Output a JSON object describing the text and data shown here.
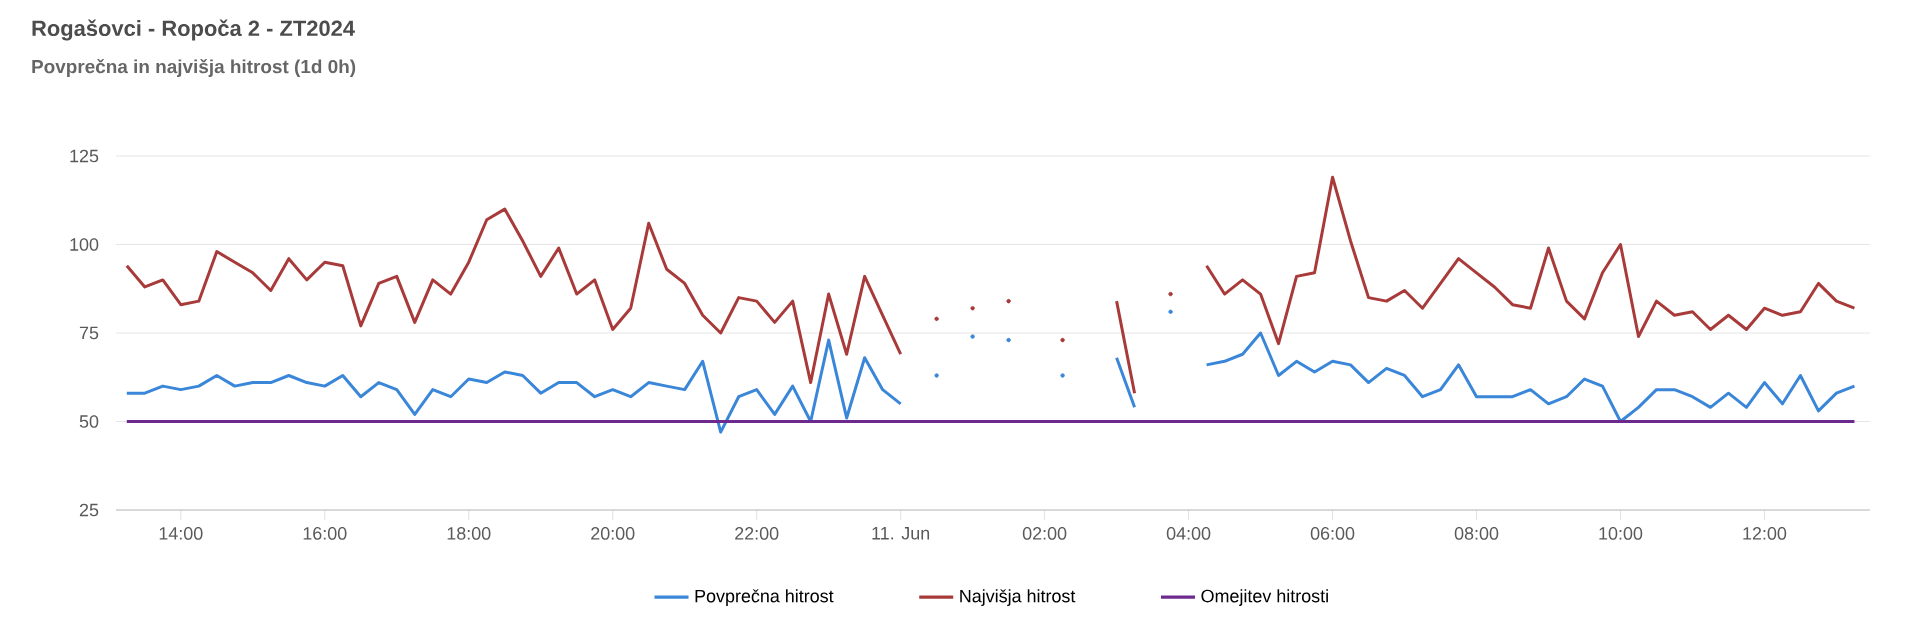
{
  "chart_data": {
    "type": "line",
    "title": "Rogašovci - Ropoča 2 - ZT2024",
    "subtitle": "Povprečna in najvišja hitrost (1d 0h)",
    "x": [
      "2024-06-10T13:15",
      "2024-06-10T13:30",
      "2024-06-10T13:45",
      "2024-06-10T14:00",
      "2024-06-10T14:15",
      "2024-06-10T14:30",
      "2024-06-10T14:45",
      "2024-06-10T15:00",
      "2024-06-10T15:15",
      "2024-06-10T15:30",
      "2024-06-10T15:45",
      "2024-06-10T16:00",
      "2024-06-10T16:15",
      "2024-06-10T16:30",
      "2024-06-10T16:45",
      "2024-06-10T17:00",
      "2024-06-10T17:15",
      "2024-06-10T17:30",
      "2024-06-10T17:45",
      "2024-06-10T18:00",
      "2024-06-10T18:15",
      "2024-06-10T18:30",
      "2024-06-10T18:45",
      "2024-06-10T19:00",
      "2024-06-10T19:15",
      "2024-06-10T19:30",
      "2024-06-10T19:45",
      "2024-06-10T20:00",
      "2024-06-10T20:15",
      "2024-06-10T20:30",
      "2024-06-10T20:45",
      "2024-06-10T21:00",
      "2024-06-10T21:15",
      "2024-06-10T21:30",
      "2024-06-10T21:45",
      "2024-06-10T22:00",
      "2024-06-10T22:15",
      "2024-06-10T22:30",
      "2024-06-10T22:45",
      "2024-06-10T23:00",
      "2024-06-10T23:15",
      "2024-06-10T23:30",
      "2024-06-10T23:45",
      "2024-06-11T00:00",
      "2024-06-11T00:15",
      "2024-06-11T00:30",
      "2024-06-11T00:45",
      "2024-06-11T01:00",
      "2024-06-11T01:15",
      "2024-06-11T01:30",
      "2024-06-11T01:45",
      "2024-06-11T02:00",
      "2024-06-11T02:15",
      "2024-06-11T02:30",
      "2024-06-11T02:45",
      "2024-06-11T03:00",
      "2024-06-11T03:15",
      "2024-06-11T03:30",
      "2024-06-11T03:45",
      "2024-06-11T04:00",
      "2024-06-11T04:15",
      "2024-06-11T04:30",
      "2024-06-11T04:45",
      "2024-06-11T05:00",
      "2024-06-11T05:15",
      "2024-06-11T05:30",
      "2024-06-11T05:45",
      "2024-06-11T06:00",
      "2024-06-11T06:15",
      "2024-06-11T06:30",
      "2024-06-11T06:45",
      "2024-06-11T07:00",
      "2024-06-11T07:15",
      "2024-06-11T07:30",
      "2024-06-11T07:45",
      "2024-06-11T08:00",
      "2024-06-11T08:15",
      "2024-06-11T08:30",
      "2024-06-11T08:45",
      "2024-06-11T09:00",
      "2024-06-11T09:15",
      "2024-06-11T09:30",
      "2024-06-11T09:45",
      "2024-06-11T10:00",
      "2024-06-11T10:15",
      "2024-06-11T10:30",
      "2024-06-11T10:45",
      "2024-06-11T11:00",
      "2024-06-11T11:15",
      "2024-06-11T11:30",
      "2024-06-11T11:45",
      "2024-06-11T12:00",
      "2024-06-11T12:15",
      "2024-06-11T12:30",
      "2024-06-11T12:45",
      "2024-06-11T13:00",
      "2024-06-11T13:15"
    ],
    "series": [
      {
        "name": "Povprečna hitrost",
        "color": "#3a86d8",
        "values": [
          58,
          58,
          60,
          59,
          60,
          63,
          60,
          61,
          61,
          63,
          61,
          60,
          63,
          57,
          61,
          59,
          52,
          59,
          57,
          62,
          61,
          64,
          63,
          58,
          61,
          61,
          57,
          59,
          57,
          61,
          60,
          59,
          67,
          47,
          57,
          59,
          52,
          60,
          50,
          73,
          51,
          68,
          59,
          55,
          null,
          63,
          null,
          74,
          null,
          73,
          null,
          null,
          63,
          null,
          null,
          68,
          54,
          null,
          81,
          null,
          66,
          67,
          69,
          75,
          63,
          67,
          64,
          67,
          66,
          61,
          65,
          63,
          57,
          59,
          66,
          57,
          57,
          57,
          59,
          55,
          57,
          62,
          60,
          50,
          54,
          59,
          59,
          57,
          54,
          58,
          54,
          61,
          55,
          63,
          53,
          58,
          60
        ]
      },
      {
        "name": "Najvišja hitrost",
        "color": "#a83a3a",
        "values": [
          94,
          88,
          90,
          83,
          84,
          98,
          95,
          92,
          87,
          96,
          90,
          95,
          94,
          77,
          89,
          91,
          78,
          90,
          86,
          95,
          107,
          110,
          101,
          91,
          99,
          86,
          90,
          76,
          82,
          106,
          93,
          89,
          80,
          75,
          85,
          84,
          78,
          84,
          61,
          86,
          69,
          91,
          80,
          69,
          null,
          79,
          null,
          82,
          null,
          84,
          null,
          null,
          73,
          null,
          null,
          84,
          58,
          null,
          86,
          null,
          94,
          86,
          90,
          86,
          72,
          91,
          92,
          119,
          101,
          85,
          84,
          87,
          82,
          89,
          96,
          92,
          88,
          83,
          82,
          99,
          84,
          79,
          92,
          100,
          74,
          84,
          80,
          81,
          76,
          80,
          76,
          82,
          80,
          81,
          89,
          84,
          82
        ]
      },
      {
        "name": "Omejitev hitrosti",
        "color": "#6c2a8f",
        "x": [
          "2024-06-10T13:15",
          "2024-06-11T13:15"
        ],
        "values": [
          50,
          50
        ]
      }
    ],
    "xlim": [
      "2024-06-10T13:06",
      "2024-06-11T13:28"
    ],
    "ylim": [
      25,
      125
    ],
    "xticks": [
      {
        "value": "2024-06-10T14:00",
        "label": "14:00"
      },
      {
        "value": "2024-06-10T16:00",
        "label": "16:00"
      },
      {
        "value": "2024-06-10T18:00",
        "label": "18:00"
      },
      {
        "value": "2024-06-10T20:00",
        "label": "20:00"
      },
      {
        "value": "2024-06-10T22:00",
        "label": "22:00"
      },
      {
        "value": "2024-06-11T00:00",
        "label": "11. Jun"
      },
      {
        "value": "2024-06-11T02:00",
        "label": "02:00"
      },
      {
        "value": "2024-06-11T04:00",
        "label": "04:00"
      },
      {
        "value": "2024-06-11T06:00",
        "label": "06:00"
      },
      {
        "value": "2024-06-11T08:00",
        "label": "08:00"
      },
      {
        "value": "2024-06-11T10:00",
        "label": "10:00"
      },
      {
        "value": "2024-06-11T12:00",
        "label": "12:00"
      }
    ],
    "yticks": [
      25,
      50,
      75,
      100,
      125
    ],
    "grid": "y",
    "legend": "bottom"
  }
}
